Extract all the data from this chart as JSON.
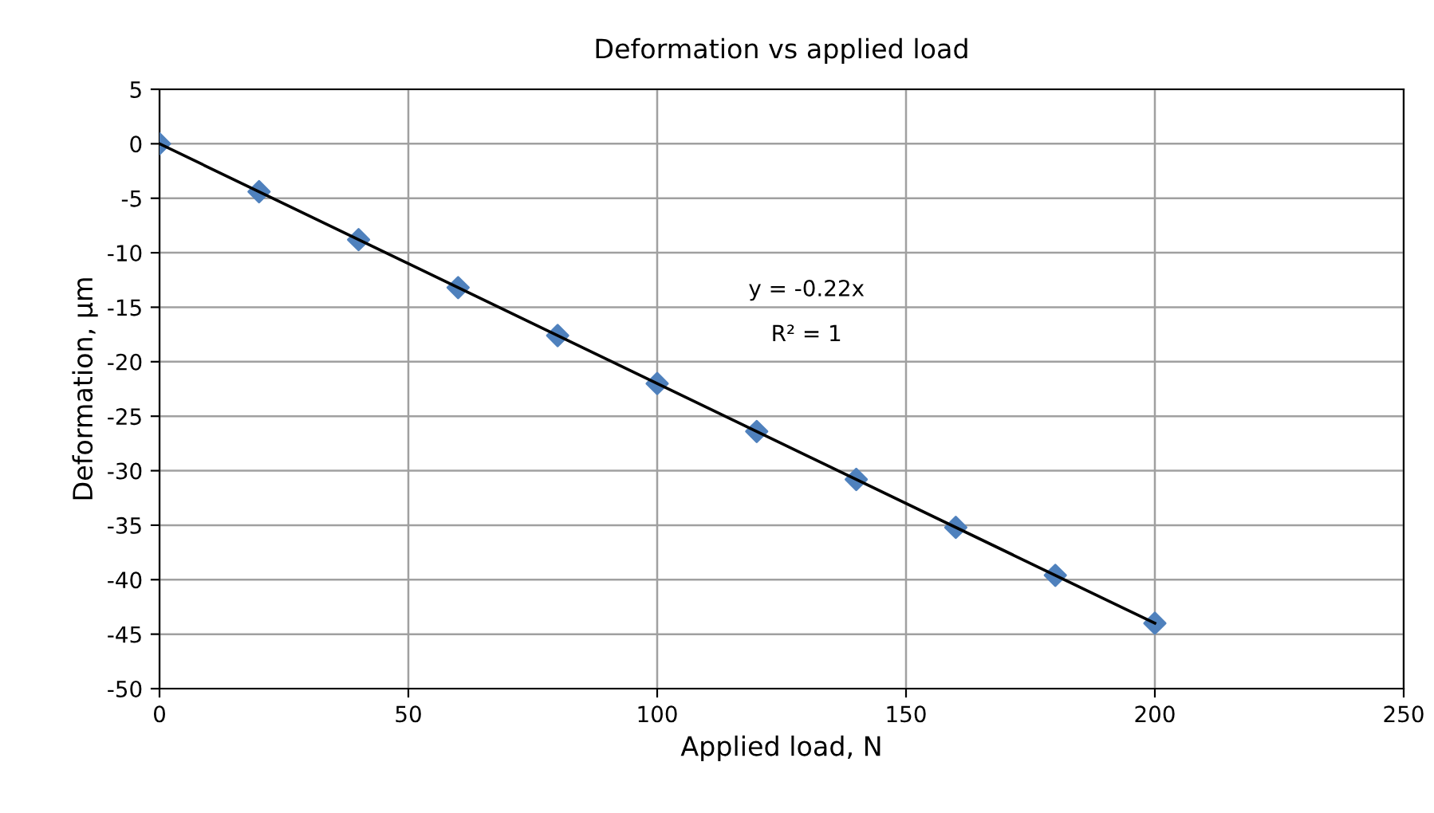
{
  "chart_data": {
    "type": "scatter",
    "title": "Deformation vs applied load",
    "xlabel": "Applied load, N",
    "ylabel": "Deformation, µm",
    "x": [
      0,
      20,
      40,
      60,
      80,
      100,
      120,
      140,
      160,
      180,
      200
    ],
    "series": [
      {
        "color": "#4f81bd",
        "marker": "diamond",
        "values": [
          0,
          -4.4,
          -8.8,
          -13.2,
          -17.6,
          -22,
          -26.4,
          -30.8,
          -35.2,
          -39.6,
          -44
        ]
      },
      {
        "type": "line",
        "color": "#000000",
        "marker": "none",
        "line_style": "solid",
        "x": [
          0,
          200
        ],
        "values": [
          0,
          -44
        ]
      }
    ],
    "annotations": [
      "y = -0.22x",
      "R² = 1"
    ],
    "xlim": [
      0,
      250
    ],
    "xticks": [
      0,
      50,
      100,
      150,
      200,
      250
    ],
    "ylim": [
      -50,
      5
    ],
    "yticks": [
      5,
      0,
      -5,
      -10,
      -15,
      -20,
      -25,
      -30,
      -35,
      -40,
      -45,
      -50
    ],
    "grid": true,
    "legend": false
  }
}
